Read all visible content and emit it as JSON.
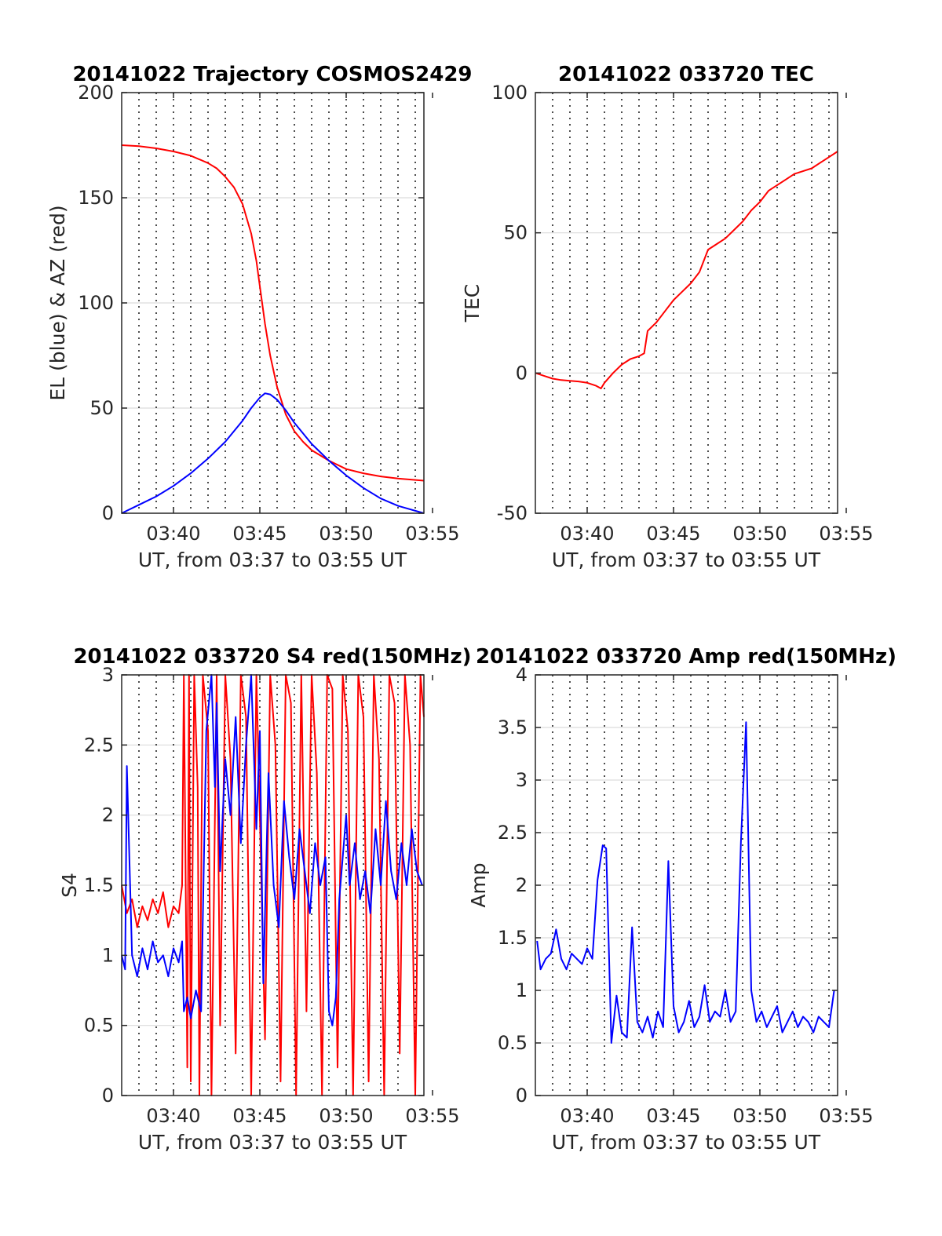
{
  "figure": {
    "background": "#ffffff",
    "axes_color": "#262626",
    "grid_color": "#dcdcdc"
  },
  "chart_data": [
    {
      "type": "line",
      "title": "20141022 Trajectory COSMOS2429",
      "xlabel": "UT, from 03:37 to 03:55 UT",
      "ylabel": "EL (blue) & AZ (red)",
      "x_unit": "minutes after 03:37 UT",
      "xlim": [
        0,
        17.5
      ],
      "ylim": [
        0,
        200
      ],
      "x_ticks": [
        3,
        8,
        13,
        18
      ],
      "x_tick_labels": [
        "03:40",
        "03:45",
        "03:50",
        "03:55"
      ],
      "y_ticks": [
        0,
        50,
        100,
        150,
        200
      ],
      "y_tick_labels": [
        "0",
        "50",
        "100",
        "150",
        "200"
      ],
      "grid_major_y": true,
      "grid_minor_x_dotted": true,
      "series": [
        {
          "name": "AZ",
          "color": "#ff0000",
          "x": [
            0,
            1,
            2,
            3,
            4,
            5,
            5.5,
            6,
            6.5,
            7,
            7.5,
            7.8,
            8,
            8.3,
            8.6,
            9,
            9.5,
            10,
            10.5,
            11,
            12,
            13,
            14,
            15,
            16,
            17.5
          ],
          "y": [
            175,
            174.5,
            173.5,
            172,
            170,
            166.5,
            164,
            160,
            155,
            147,
            133,
            120,
            108,
            90,
            75,
            60,
            47,
            39,
            34,
            30,
            25,
            21,
            19,
            17.5,
            16.5,
            15.5
          ]
        },
        {
          "name": "EL",
          "color": "#0000ff",
          "x": [
            0,
            1,
            2,
            3,
            4,
            5,
            6,
            7,
            7.5,
            8,
            8.3,
            8.6,
            9,
            9.5,
            10,
            11,
            12,
            13,
            14,
            15,
            16,
            17.5
          ],
          "y": [
            0,
            4,
            8,
            13,
            19,
            26,
            34,
            44,
            50,
            55,
            57,
            56.5,
            54,
            49,
            43,
            33,
            25,
            18,
            12,
            7,
            3.5,
            0
          ]
        }
      ]
    },
    {
      "type": "line",
      "title": "20141022 033720 TEC",
      "xlabel": "UT, from 03:37 to 03:55 UT",
      "ylabel": "TEC",
      "x_unit": "minutes after 03:37 UT",
      "xlim": [
        0,
        17.5
      ],
      "ylim": [
        -50,
        100
      ],
      "x_ticks": [
        3,
        8,
        13,
        18
      ],
      "x_tick_labels": [
        "03:40",
        "03:45",
        "03:50",
        "03:55"
      ],
      "y_ticks": [
        -50,
        0,
        50,
        100
      ],
      "y_tick_labels": [
        "-50",
        "0",
        "50",
        "100"
      ],
      "grid_major_y": true,
      "grid_minor_x_dotted": true,
      "series": [
        {
          "name": "TEC",
          "color": "#ff0000",
          "x": [
            0,
            0.5,
            1,
            1.5,
            2,
            2.5,
            3,
            3.5,
            3.8,
            4,
            4.5,
            5,
            5.5,
            6,
            6.3,
            6.5,
            7,
            7.5,
            8,
            8.5,
            9,
            9.5,
            10,
            10.5,
            11,
            11.5,
            12,
            12.5,
            13,
            13.5,
            14,
            14.5,
            15,
            15.5,
            16,
            16.5,
            17,
            17.5
          ],
          "y": [
            0,
            -1,
            -2,
            -2.5,
            -2.8,
            -3,
            -3.5,
            -4.5,
            -5.5,
            -3.5,
            0,
            3,
            5,
            6,
            7,
            15,
            18,
            22,
            26,
            29,
            32,
            36,
            44,
            46,
            48,
            51,
            54,
            58,
            61,
            65,
            67,
            69,
            71,
            72,
            73,
            75,
            77,
            79
          ]
        }
      ]
    },
    {
      "type": "line",
      "title": "20141022 033720 S4 red(150MHz)",
      "xlabel": "UT, from 03:37 to 03:55 UT",
      "ylabel": "S4",
      "x_unit": "minutes after 03:37 UT",
      "xlim": [
        0,
        17.5
      ],
      "ylim": [
        0,
        3
      ],
      "x_ticks": [
        3,
        8,
        13,
        18
      ],
      "x_tick_labels": [
        "03:40",
        "03:45",
        "03:50",
        "03:55"
      ],
      "y_ticks": [
        0,
        0.5,
        1,
        1.5,
        2,
        2.5,
        3
      ],
      "y_tick_labels": [
        "0",
        "0.5",
        "1",
        "1.5",
        "2",
        "2.5",
        "3"
      ],
      "grid_major_y": true,
      "grid_minor_x_dotted": true,
      "series": [
        {
          "name": "red",
          "color": "#ff0000",
          "x": [
            0,
            0.3,
            0.6,
            0.9,
            1.2,
            1.5,
            1.8,
            2.1,
            2.4,
            2.7,
            3,
            3.3,
            3.5,
            3.6,
            3.8,
            3.9,
            4,
            4.2,
            4.4,
            4.5,
            4.7,
            5,
            5.2,
            5.5,
            5.7,
            6,
            6.3,
            6.6,
            6.9,
            7.2,
            7.5,
            7.8,
            8,
            8.3,
            8.6,
            8.9,
            9.2,
            9.5,
            9.8,
            10.1,
            10.4,
            10.7,
            11,
            11.3,
            11.6,
            11.9,
            12.2,
            12.5,
            12.8,
            13.1,
            13.4,
            13.7,
            14,
            14.3,
            14.6,
            14.9,
            15.2,
            15.5,
            15.8,
            16.1,
            16.4,
            16.7,
            17,
            17.3,
            17.5
          ],
          "y": [
            1.5,
            1.3,
            1.4,
            1.2,
            1.35,
            1.25,
            1.4,
            1.3,
            1.45,
            1.2,
            1.35,
            1.3,
            1.5,
            3,
            0.2,
            3,
            0.1,
            3,
            2.2,
            0,
            3,
            2.6,
            0,
            3,
            0.5,
            3,
            2.4,
            0.3,
            3,
            2.7,
            0,
            3,
            2,
            0.4,
            3,
            2.5,
            0.1,
            3,
            2.8,
            0,
            3,
            0.6,
            3,
            2.3,
            0,
            3,
            2.9,
            0.2,
            3,
            2.6,
            0,
            3,
            2.7,
            0.1,
            3,
            2.4,
            0,
            3,
            2.8,
            0.3,
            3,
            2.5,
            0,
            3,
            2.7
          ]
        },
        {
          "name": "blue",
          "color": "#0000ff",
          "x": [
            0,
            0.2,
            0.3,
            0.6,
            0.9,
            1.2,
            1.5,
            1.8,
            2.1,
            2.4,
            2.7,
            3,
            3.3,
            3.5,
            3.6,
            3.8,
            4,
            4.3,
            4.6,
            4.9,
            5.2,
            5.4,
            5.5,
            5.7,
            6,
            6.3,
            6.6,
            6.9,
            7.2,
            7.5,
            7.8,
            8,
            8.2,
            8.5,
            8.8,
            9.1,
            9.4,
            9.7,
            10,
            10.3,
            10.6,
            10.9,
            11.2,
            11.5,
            11.8,
            12,
            12.2,
            12.4,
            12.6,
            12.8,
            13,
            13.2,
            13.5,
            13.8,
            14.1,
            14.4,
            14.7,
            15,
            15.3,
            15.6,
            15.9,
            16.2,
            16.5,
            16.8,
            17.1,
            17.4
          ],
          "y": [
            1.0,
            0.9,
            2.35,
            1.0,
            0.85,
            1.05,
            0.9,
            1.1,
            0.95,
            1.0,
            0.85,
            1.05,
            0.95,
            1.1,
            0.6,
            0.7,
            0.55,
            0.75,
            0.6,
            2.6,
            3,
            2.2,
            2.8,
            1.6,
            2.4,
            2.0,
            2.7,
            1.8,
            2.5,
            3,
            1.9,
            2.6,
            0.8,
            2.3,
            1.5,
            1.2,
            2.1,
            1.7,
            1.4,
            1.9,
            1.6,
            1.3,
            1.8,
            1.5,
            1.7,
            0.6,
            0.5,
            0.7,
            1.4,
            1.7,
            2.0,
            1.5,
            1.8,
            1.4,
            1.6,
            1.3,
            1.9,
            1.5,
            2.1,
            1.6,
            1.4,
            1.8,
            1.5,
            1.9,
            1.6,
            1.5
          ]
        }
      ]
    },
    {
      "type": "line",
      "title": "20141022 033720 Amp red(150MHz)",
      "xlabel": "UT, from 03:37 to 03:55 UT",
      "ylabel": "Amp",
      "x_unit": "minutes after 03:37 UT",
      "xlim": [
        0,
        17.5
      ],
      "ylim": [
        0,
        4
      ],
      "x_ticks": [
        3,
        8,
        13,
        18
      ],
      "x_tick_labels": [
        "03:40",
        "03:45",
        "03:50",
        "03:55"
      ],
      "y_ticks": [
        0,
        0.5,
        1,
        1.5,
        2,
        2.5,
        3,
        3.5,
        4
      ],
      "y_tick_labels": [
        "0",
        "0.5",
        "1",
        "1.5",
        "2",
        "2.5",
        "3",
        "3.5",
        "4"
      ],
      "grid_major_y": true,
      "grid_minor_x_dotted": true,
      "series": [
        {
          "name": "Amp",
          "color": "#0000ff",
          "x": [
            0.1,
            0.3,
            0.6,
            0.9,
            1.2,
            1.5,
            1.8,
            2.1,
            2.4,
            2.7,
            3.0,
            3.3,
            3.6,
            3.9,
            4.1,
            4.4,
            4.7,
            5.0,
            5.3,
            5.6,
            5.9,
            6.2,
            6.5,
            6.8,
            7.1,
            7.4,
            7.7,
            8.0,
            8.3,
            8.6,
            8.9,
            9.2,
            9.5,
            9.8,
            10.1,
            10.4,
            10.7,
            11.0,
            11.3,
            11.6,
            11.9,
            12.2,
            12.5,
            12.8,
            13.1,
            13.4,
            13.7,
            14.0,
            14.3,
            14.6,
            14.9,
            15.2,
            15.5,
            15.8,
            16.1,
            16.4,
            16.7,
            17.0,
            17.3
          ],
          "y": [
            1.47,
            1.2,
            1.3,
            1.35,
            1.58,
            1.3,
            1.2,
            1.35,
            1.3,
            1.25,
            1.4,
            1.3,
            2.05,
            2.38,
            2.35,
            0.5,
            0.95,
            0.6,
            0.55,
            1.6,
            0.7,
            0.6,
            0.75,
            0.55,
            0.8,
            0.65,
            2.23,
            0.85,
            0.6,
            0.7,
            0.9,
            0.65,
            0.75,
            1.05,
            0.7,
            0.8,
            0.75,
            1.0,
            0.7,
            0.8,
            2.4,
            3.55,
            1.0,
            0.7,
            0.8,
            0.65,
            0.75,
            0.85,
            0.6,
            0.7,
            0.8,
            0.65,
            0.75,
            0.7,
            0.6,
            0.75,
            0.7,
            0.65,
            1.0
          ]
        }
      ]
    }
  ]
}
